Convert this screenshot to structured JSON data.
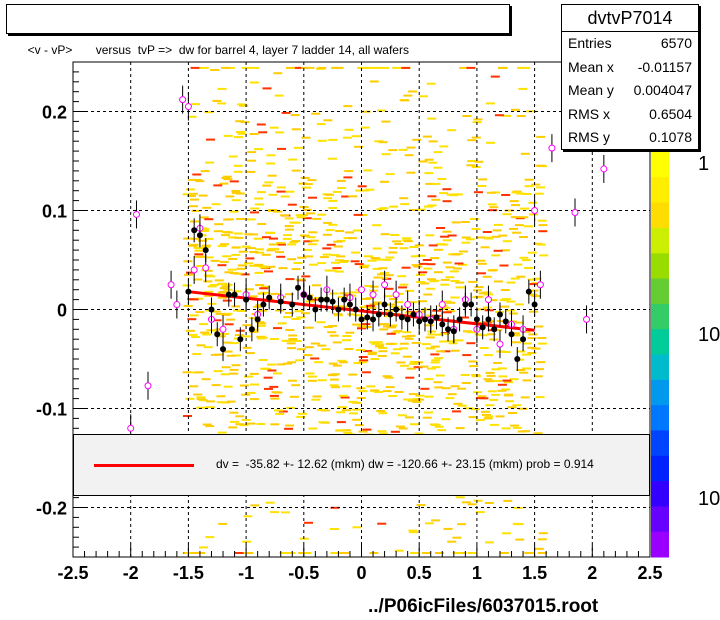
{
  "title": "<v - vP>       versus  tvP =>  dw for barrel 4, layer 7 ladder 14, all wafers",
  "stats": {
    "name": "dvtvP7014",
    "rows": [
      {
        "label": "Entries",
        "value": "6570"
      },
      {
        "label": "Mean x",
        "value": "-0.01157"
      },
      {
        "label": "Mean y",
        "value": "0.004047"
      },
      {
        "label": "RMS x",
        "value": "0.6504"
      },
      {
        "label": "RMS y",
        "value": "0.1078"
      }
    ]
  },
  "legend": {
    "text": "dv =  -35.82 +- 12.62 (mkm) dw = -120.66 +- 23.15 (mkm) prob = 0.914",
    "line_color": "#ff0000"
  },
  "footer": "../P06icFiles/6037015.root",
  "colorbar": {
    "labels": [
      "1",
      "10",
      "10"
    ]
  },
  "chart_data": {
    "type": "scatter",
    "xlim": [
      -2.5,
      2.5
    ],
    "ylim": [
      -0.25,
      0.25
    ],
    "x_ticks": [
      "-2.5",
      "-2",
      "-1.5",
      "-1",
      "-0.5",
      "0",
      "0.5",
      "1",
      "1.5",
      "2",
      "2.5"
    ],
    "y_ticks": [
      "-0.2",
      "-0.1",
      "0",
      "0.1",
      "0.2"
    ],
    "grid": true,
    "fit_line": {
      "x": [
        -1.5,
        1.5
      ],
      "y": [
        0.018,
        -0.021
      ],
      "color": "#ff0000"
    },
    "profile_black": [
      {
        "x": -1.5,
        "y": 0.018
      },
      {
        "x": -1.45,
        "y": 0.08
      },
      {
        "x": -1.4,
        "y": 0.075
      },
      {
        "x": -1.35,
        "y": 0.06
      },
      {
        "x": -1.3,
        "y": 0.0
      },
      {
        "x": -1.25,
        "y": -0.025
      },
      {
        "x": -1.2,
        "y": -0.04
      },
      {
        "x": -1.15,
        "y": 0.015
      },
      {
        "x": -1.1,
        "y": 0.015
      },
      {
        "x": -1.05,
        "y": -0.03
      },
      {
        "x": -1.0,
        "y": 0.01
      },
      {
        "x": -0.95,
        "y": -0.02
      },
      {
        "x": -0.9,
        "y": -0.01
      },
      {
        "x": -0.85,
        "y": 0.005
      },
      {
        "x": -0.8,
        "y": 0.012
      },
      {
        "x": -0.7,
        "y": 0.008
      },
      {
        "x": -0.6,
        "y": 0.005
      },
      {
        "x": -0.55,
        "y": 0.022
      },
      {
        "x": -0.5,
        "y": 0.015
      },
      {
        "x": -0.45,
        "y": 0.012
      },
      {
        "x": -0.4,
        "y": 0.0
      },
      {
        "x": -0.35,
        "y": 0.01
      },
      {
        "x": -0.3,
        "y": 0.01
      },
      {
        "x": -0.25,
        "y": 0.008
      },
      {
        "x": -0.2,
        "y": 0.0
      },
      {
        "x": -0.15,
        "y": 0.01
      },
      {
        "x": -0.1,
        "y": 0.005
      },
      {
        "x": -0.05,
        "y": 0.0
      },
      {
        "x": 0.0,
        "y": -0.01
      },
      {
        "x": 0.05,
        "y": -0.008
      },
      {
        "x": 0.1,
        "y": -0.01
      },
      {
        "x": 0.15,
        "y": -0.005
      },
      {
        "x": 0.2,
        "y": 0.005
      },
      {
        "x": 0.25,
        "y": -0.005
      },
      {
        "x": 0.3,
        "y": 0.0
      },
      {
        "x": 0.35,
        "y": -0.008
      },
      {
        "x": 0.4,
        "y": -0.01
      },
      {
        "x": 0.45,
        "y": -0.005
      },
      {
        "x": 0.5,
        "y": -0.012
      },
      {
        "x": 0.55,
        "y": -0.01
      },
      {
        "x": 0.6,
        "y": -0.012
      },
      {
        "x": 0.65,
        "y": -0.008
      },
      {
        "x": 0.7,
        "y": -0.015
      },
      {
        "x": 0.75,
        "y": -0.02
      },
      {
        "x": 0.8,
        "y": -0.022
      },
      {
        "x": 0.85,
        "y": -0.01
      },
      {
        "x": 0.9,
        "y": 0.005
      },
      {
        "x": 0.95,
        "y": 0.005
      },
      {
        "x": 1.0,
        "y": -0.01
      },
      {
        "x": 1.05,
        "y": -0.018
      },
      {
        "x": 1.1,
        "y": -0.01
      },
      {
        "x": 1.15,
        "y": -0.02
      },
      {
        "x": 1.2,
        "y": -0.005
      },
      {
        "x": 1.25,
        "y": -0.012
      },
      {
        "x": 1.3,
        "y": -0.025
      },
      {
        "x": 1.35,
        "y": -0.05
      },
      {
        "x": 1.4,
        "y": -0.03
      },
      {
        "x": 1.45,
        "y": 0.018
      },
      {
        "x": 1.5,
        "y": 0.005
      }
    ],
    "profile_open": [
      {
        "x": -2.0,
        "y": -0.12
      },
      {
        "x": -1.95,
        "y": 0.096
      },
      {
        "x": -1.85,
        "y": -0.077
      },
      {
        "x": -1.65,
        "y": 0.025
      },
      {
        "x": -1.6,
        "y": 0.005
      },
      {
        "x": -1.55,
        "y": 0.212
      },
      {
        "x": -1.5,
        "y": 0.205
      },
      {
        "x": -1.45,
        "y": 0.04
      },
      {
        "x": -1.4,
        "y": 0.082
      },
      {
        "x": -1.35,
        "y": 0.042
      },
      {
        "x": -1.3,
        "y": -0.01
      },
      {
        "x": -1.2,
        "y": -0.02
      },
      {
        "x": -1.0,
        "y": 0.015
      },
      {
        "x": -0.9,
        "y": -0.005
      },
      {
        "x": -0.7,
        "y": 0.012
      },
      {
        "x": -0.5,
        "y": 0.015
      },
      {
        "x": -0.3,
        "y": 0.02
      },
      {
        "x": -0.1,
        "y": 0.012
      },
      {
        "x": 0.0,
        "y": 0.02
      },
      {
        "x": 0.1,
        "y": 0.015
      },
      {
        "x": 0.2,
        "y": 0.025
      },
      {
        "x": 0.3,
        "y": 0.015
      },
      {
        "x": 0.4,
        "y": 0.005
      },
      {
        "x": 0.5,
        "y": -0.005
      },
      {
        "x": 0.6,
        "y": -0.01
      },
      {
        "x": 0.7,
        "y": 0.005
      },
      {
        "x": 0.8,
        "y": -0.02
      },
      {
        "x": 0.9,
        "y": 0.01
      },
      {
        "x": 1.0,
        "y": -0.02
      },
      {
        "x": 1.1,
        "y": 0.01
      },
      {
        "x": 1.2,
        "y": -0.035
      },
      {
        "x": 1.3,
        "y": -0.015
      },
      {
        "x": 1.4,
        "y": -0.02
      },
      {
        "x": 1.5,
        "y": 0.1
      },
      {
        "x": 1.55,
        "y": 0.025
      },
      {
        "x": 1.65,
        "y": 0.163
      },
      {
        "x": 1.85,
        "y": 0.098
      },
      {
        "x": 1.95,
        "y": -0.01
      },
      {
        "x": 2.1,
        "y": 0.142
      }
    ]
  }
}
